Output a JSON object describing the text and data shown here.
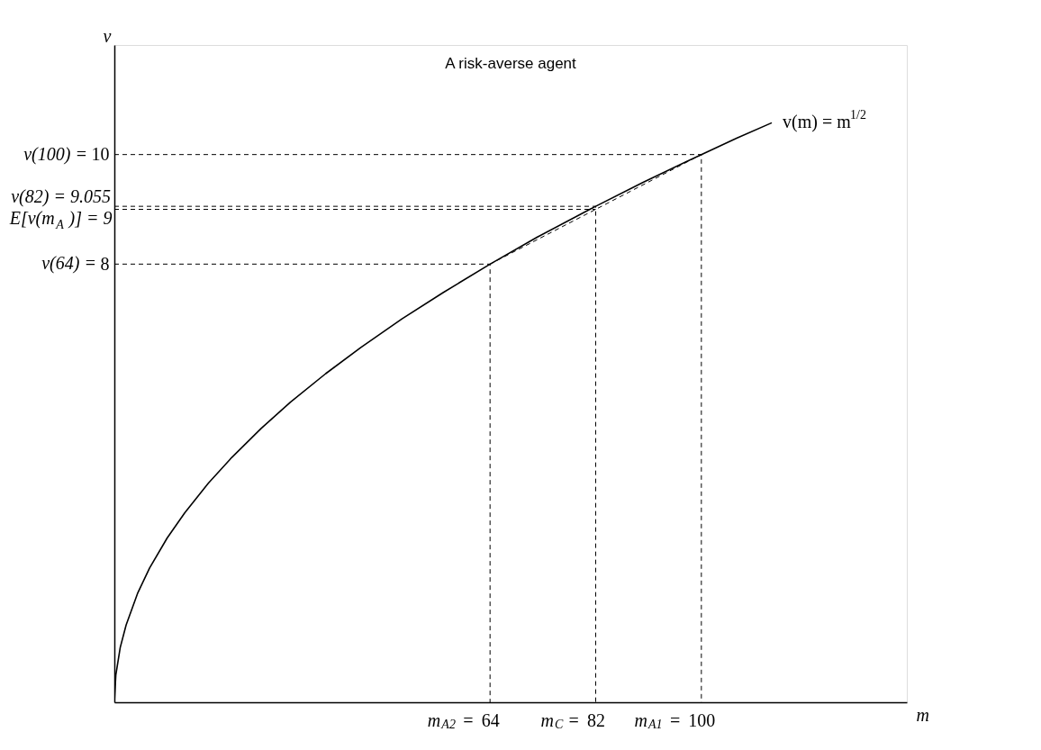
{
  "chart_data": {
    "type": "line",
    "title": "A risk-averse agent",
    "xlabel": "m",
    "ylabel": "v",
    "xlim": [
      0,
      135
    ],
    "ylim": [
      0,
      12
    ],
    "xticks": [
      64,
      82,
      100
    ],
    "yticks": [
      8,
      10
    ],
    "annotations": [
      {
        "text": "m$_{A2}$ =",
        "x": 64,
        "y": 0
      },
      {
        "text": "m$_{C}$ =",
        "x": 82,
        "y": 0
      },
      {
        "text": "m$_{A1}$ =",
        "x": 100,
        "y": 0
      },
      {
        "text": "v(64) =",
        "x": 0,
        "y": 8
      },
      {
        "text": "v(100) =",
        "x": 0,
        "y": 10
      },
      {
        "text": "E[v(m$_{A}$)] = 9",
        "x": 0,
        "y": 9
      },
      {
        "text": "v(82) = 9.055",
        "x": 0,
        "y": 9.055
      }
    ],
    "grid": false,
    "legend": false,
    "marker": "none",
    "series": [
      {
        "name": "v(m) = m$^{1/2}$",
        "color": "#000000",
        "line_style": "solid",
        "x": [
          0,
          0.25,
          1,
          2,
          4,
          6,
          9,
          12,
          16,
          20,
          25,
          30,
          36,
          42,
          49,
          56,
          64,
          72,
          81,
          82,
          90,
          100,
          106,
          112
        ],
        "values": [
          0,
          0.5,
          1,
          1.41,
          2,
          2.45,
          3,
          3.46,
          4,
          4.47,
          5,
          5.48,
          6,
          6.48,
          7,
          7.48,
          8,
          8.49,
          9,
          9.055,
          9.49,
          10,
          10.3,
          10.58
        ]
      },
      {
        "color": "#000000",
        "line_style": "dashed",
        "x": [
          0,
          100,
          100
        ],
        "values": [
          10,
          10,
          0
        ]
      },
      {
        "color": "#000000",
        "line_style": "dashed",
        "x": [
          0,
          82,
          82
        ],
        "values": [
          9.055,
          9.055,
          0
        ]
      },
      {
        "color": "#000000",
        "line_style": "dashed",
        "x": [
          0,
          64,
          64
        ],
        "values": [
          8,
          8,
          0
        ]
      },
      {
        "color": "#000000",
        "line_style": "dashed",
        "x": [
          0,
          82
        ],
        "values": [
          9,
          9
        ]
      },
      {
        "color": "#000000",
        "line_style": "dashed",
        "x": [
          64,
          82,
          100
        ],
        "values": [
          8,
          9,
          10
        ]
      }
    ]
  }
}
